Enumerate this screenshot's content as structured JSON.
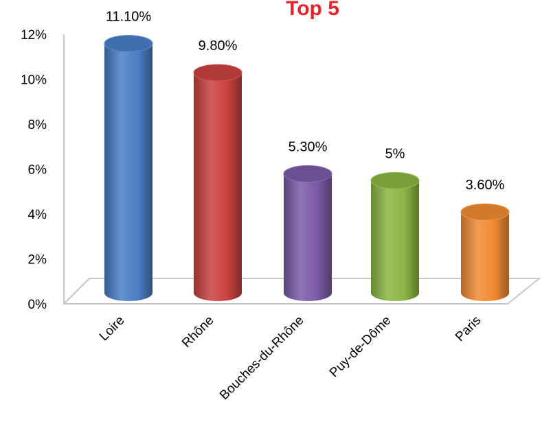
{
  "chart_data": {
    "type": "bar",
    "title": "Top 5",
    "title_color": "#e8242a",
    "categories": [
      "Loire",
      "Rhône",
      "Bouches-du-Rhône",
      "Puy-de-Dôme",
      "Paris"
    ],
    "values": [
      11.1,
      9.8,
      5.3,
      5.0,
      3.6
    ],
    "data_labels": [
      "11.10%",
      "9.80%",
      "5.30%",
      "5%",
      "3.60%"
    ],
    "bar_colors": [
      "#4a7dc4",
      "#c8423f",
      "#7b5aa6",
      "#8ab542",
      "#f08a32"
    ],
    "bar_shape": "cylinder",
    "ylim": [
      0,
      12
    ],
    "yticks": [
      {
        "value": 0,
        "label": "0%"
      },
      {
        "value": 2,
        "label": "2%"
      },
      {
        "value": 4,
        "label": "4%"
      },
      {
        "value": 6,
        "label": "6%"
      },
      {
        "value": 8,
        "label": "8%"
      },
      {
        "value": 10,
        "label": "10%"
      },
      {
        "value": 12,
        "label": "12%"
      }
    ],
    "grid": false,
    "legend": "none",
    "xlabel": "",
    "ylabel": ""
  }
}
